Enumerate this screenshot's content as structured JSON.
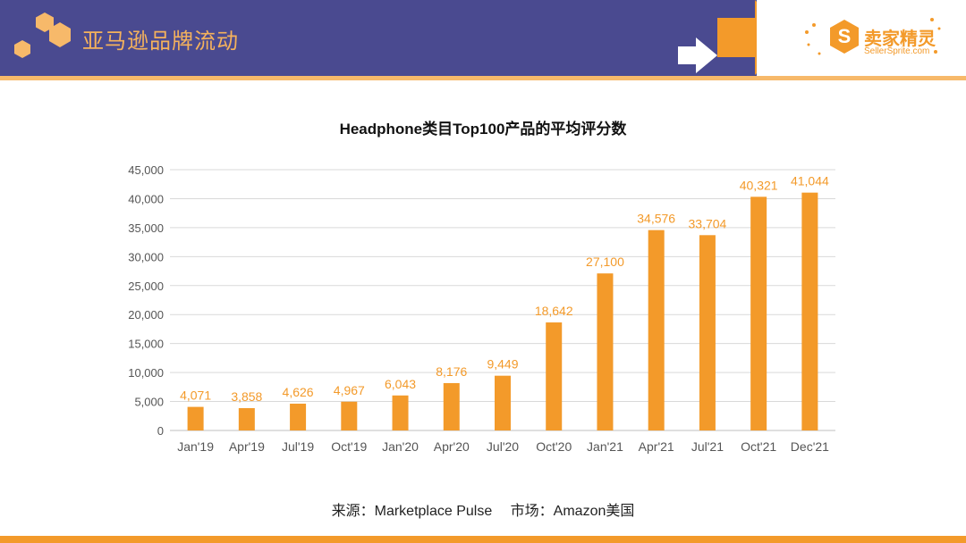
{
  "header": {
    "title": "亚马逊品牌流动",
    "logo_text": "卖家精灵",
    "logo_sub": "SellerSprite.com",
    "band_color": "#4a4a90",
    "accent_color": "#f39a2a"
  },
  "source": {
    "text": "来源：Marketplace Pulse　 市场：Amazon美国"
  },
  "chart_data": {
    "type": "bar",
    "title": "Headphone类目Top100产品的平均评分数",
    "categories": [
      "Jan'19",
      "Apr'19",
      "Jul'19",
      "Oct'19",
      "Jan'20",
      "Apr'20",
      "Jul'20",
      "Oct'20",
      "Jan'21",
      "Apr'21",
      "Jul'21",
      "Oct'21",
      "Dec'21"
    ],
    "values": [
      4071,
      3858,
      4626,
      4967,
      6043,
      8176,
      9449,
      18642,
      27100,
      34576,
      33704,
      40321,
      41044
    ],
    "data_labels": [
      "4,071",
      "3,858",
      "4,626",
      "4,967",
      "6,043",
      "8,176",
      "9,449",
      "18,642",
      "27,100",
      "34,576",
      "33,704",
      "40,321",
      "41,044"
    ],
    "y_ticks": [
      "0",
      "5,000",
      "10,000",
      "15,000",
      "20,000",
      "25,000",
      "30,000",
      "35,000",
      "40,000",
      "45,000"
    ],
    "ylim": [
      0,
      45000
    ],
    "grid": true,
    "legend": "none",
    "bar_color": "#f39a2a",
    "label_color": "#f39a2a"
  }
}
